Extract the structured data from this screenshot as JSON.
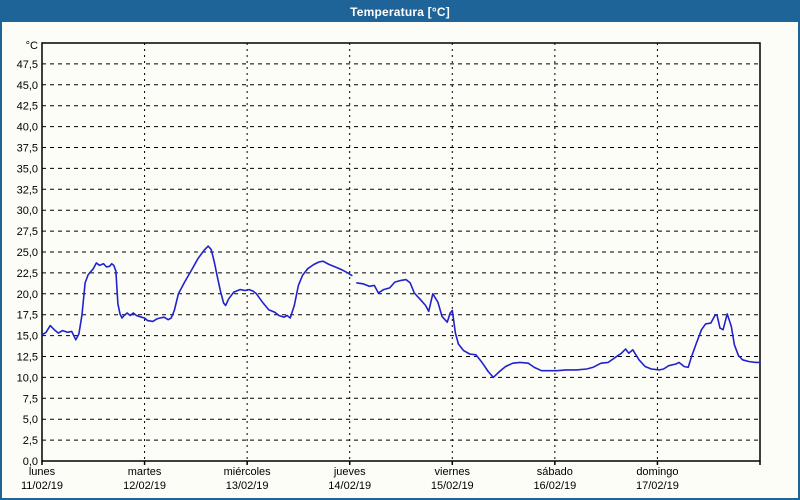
{
  "window": {
    "title": "Temperatura [°C]",
    "titlebar_color": "#1e6499",
    "border_color": "#1e6499",
    "background_color": "#fcfdf7"
  },
  "chart_data": {
    "type": "line",
    "title": "Temperatura [°C]",
    "grid": {
      "horizontal_dashed": true,
      "vertical_dashed": true
    },
    "legend_position": "none",
    "y_axis": {
      "unit": "°C",
      "min": 0,
      "max": 50,
      "tick_step": 2.5,
      "decimal_separator": ",",
      "ticks": [
        {
          "v": 47.5,
          "label": "47,5"
        },
        {
          "v": 45.0,
          "label": "45,0"
        },
        {
          "v": 42.5,
          "label": "42,5"
        },
        {
          "v": 40.0,
          "label": "40,0"
        },
        {
          "v": 37.5,
          "label": "37,5"
        },
        {
          "v": 35.0,
          "label": "35,0"
        },
        {
          "v": 32.5,
          "label": "32,5"
        },
        {
          "v": 30.0,
          "label": "30,0"
        },
        {
          "v": 27.5,
          "label": "27,5"
        },
        {
          "v": 25.0,
          "label": "25,0"
        },
        {
          "v": 22.5,
          "label": "22,5"
        },
        {
          "v": 20.0,
          "label": "20,0"
        },
        {
          "v": 17.5,
          "label": "17,5"
        },
        {
          "v": 15.0,
          "label": "15,0"
        },
        {
          "v": 12.5,
          "label": "12,5"
        },
        {
          "v": 10.0,
          "label": "10,0"
        },
        {
          "v": 7.5,
          "label": "7,5"
        },
        {
          "v": 5.0,
          "label": "5,0"
        },
        {
          "v": 2.5,
          "label": "2,5"
        },
        {
          "v": 0.0,
          "label": "0,0"
        }
      ]
    },
    "x_axis": {
      "days": [
        {
          "name": "lunes",
          "date": "11/02/19"
        },
        {
          "name": "martes",
          "date": "12/02/19"
        },
        {
          "name": "miércoles",
          "date": "13/02/19"
        },
        {
          "name": "jueves",
          "date": "14/02/19"
        },
        {
          "name": "viernes",
          "date": "15/02/19"
        },
        {
          "name": "sábado",
          "date": "16/02/19"
        },
        {
          "name": "domingo",
          "date": "17/02/19"
        }
      ]
    },
    "series": [
      {
        "name": "Temperatura",
        "color": "#2222cc",
        "x_unit": "days_since_monday_00h",
        "segments": [
          [
            [
              0.0,
              15.1
            ],
            [
              0.04,
              15.4
            ],
            [
              0.08,
              16.2
            ],
            [
              0.12,
              15.7
            ],
            [
              0.16,
              15.3
            ],
            [
              0.2,
              15.6
            ],
            [
              0.25,
              15.4
            ],
            [
              0.29,
              15.5
            ],
            [
              0.33,
              14.5
            ],
            [
              0.36,
              15.2
            ],
            [
              0.39,
              17.5
            ],
            [
              0.42,
              21.3
            ],
            [
              0.45,
              22.3
            ],
            [
              0.5,
              23.0
            ],
            [
              0.53,
              23.7
            ],
            [
              0.56,
              23.4
            ],
            [
              0.6,
              23.6
            ],
            [
              0.63,
              23.2
            ],
            [
              0.66,
              23.3
            ],
            [
              0.68,
              23.6
            ],
            [
              0.7,
              23.4
            ],
            [
              0.72,
              22.7
            ],
            [
              0.73,
              20.7
            ],
            [
              0.74,
              18.8
            ],
            [
              0.76,
              17.6
            ],
            [
              0.78,
              17.1
            ],
            [
              0.8,
              17.4
            ],
            [
              0.83,
              17.7
            ],
            [
              0.86,
              17.4
            ],
            [
              0.89,
              17.7
            ],
            [
              0.92,
              17.4
            ],
            [
              0.97,
              17.2
            ],
            [
              1.0,
              17.1
            ],
            [
              1.03,
              16.8
            ],
            [
              1.08,
              16.7
            ],
            [
              1.12,
              17.0
            ],
            [
              1.15,
              17.1
            ],
            [
              1.19,
              17.2
            ],
            [
              1.23,
              16.9
            ],
            [
              1.26,
              17.1
            ],
            [
              1.29,
              18.0
            ],
            [
              1.33,
              20.0
            ],
            [
              1.39,
              21.4
            ],
            [
              1.46,
              22.9
            ],
            [
              1.52,
              24.2
            ],
            [
              1.58,
              25.2
            ],
            [
              1.62,
              25.7
            ],
            [
              1.65,
              25.3
            ],
            [
              1.68,
              23.8
            ],
            [
              1.71,
              22.0
            ],
            [
              1.74,
              20.3
            ],
            [
              1.77,
              18.9
            ],
            [
              1.79,
              18.6
            ],
            [
              1.82,
              19.4
            ],
            [
              1.87,
              20.2
            ],
            [
              1.93,
              20.5
            ],
            [
              1.98,
              20.4
            ],
            [
              2.02,
              20.5
            ],
            [
              2.06,
              20.3
            ],
            [
              2.09,
              20.0
            ],
            [
              2.15,
              19.0
            ],
            [
              2.21,
              18.1
            ],
            [
              2.27,
              17.8
            ],
            [
              2.31,
              17.4
            ],
            [
              2.36,
              17.2
            ],
            [
              2.39,
              17.4
            ],
            [
              2.42,
              17.1
            ],
            [
              2.46,
              18.6
            ],
            [
              2.5,
              21.0
            ],
            [
              2.54,
              22.2
            ],
            [
              2.59,
              23.0
            ],
            [
              2.65,
              23.5
            ],
            [
              2.7,
              23.8
            ],
            [
              2.74,
              23.9
            ],
            [
              2.8,
              23.5
            ],
            [
              2.86,
              23.2
            ],
            [
              2.92,
              22.9
            ],
            [
              2.98,
              22.5
            ],
            [
              3.02,
              22.2
            ]
          ],
          [
            [
              3.07,
              21.3
            ],
            [
              3.13,
              21.2
            ],
            [
              3.19,
              20.9
            ],
            [
              3.24,
              21.0
            ],
            [
              3.28,
              20.1
            ],
            [
              3.33,
              20.5
            ],
            [
              3.39,
              20.7
            ],
            [
              3.44,
              21.4
            ],
            [
              3.5,
              21.6
            ],
            [
              3.55,
              21.7
            ],
            [
              3.59,
              21.3
            ],
            [
              3.63,
              20.1
            ],
            [
              3.69,
              19.3
            ],
            [
              3.74,
              18.6
            ],
            [
              3.77,
              17.9
            ],
            [
              3.81,
              20.0
            ],
            [
              3.86,
              19.0
            ],
            [
              3.9,
              17.3
            ],
            [
              3.95,
              16.6
            ],
            [
              3.98,
              17.7
            ],
            [
              4.0,
              18.0
            ],
            [
              4.03,
              15.3
            ],
            [
              4.06,
              14.0
            ],
            [
              4.11,
              13.2
            ],
            [
              4.17,
              12.8
            ],
            [
              4.23,
              12.7
            ],
            [
              4.29,
              11.8
            ],
            [
              4.35,
              10.7
            ],
            [
              4.4,
              10.0
            ],
            [
              4.46,
              10.7
            ],
            [
              4.52,
              11.3
            ],
            [
              4.59,
              11.7
            ],
            [
              4.66,
              11.8
            ],
            [
              4.74,
              11.7
            ],
            [
              4.8,
              11.2
            ],
            [
              4.87,
              10.8
            ],
            [
              4.95,
              10.8
            ],
            [
              5.02,
              10.8
            ],
            [
              5.11,
              10.9
            ],
            [
              5.21,
              10.9
            ],
            [
              5.31,
              11.0
            ],
            [
              5.37,
              11.2
            ],
            [
              5.45,
              11.7
            ],
            [
              5.52,
              11.8
            ],
            [
              5.59,
              12.4
            ],
            [
              5.65,
              12.9
            ],
            [
              5.69,
              13.4
            ],
            [
              5.72,
              12.9
            ],
            [
              5.76,
              13.3
            ],
            [
              5.82,
              12.1
            ],
            [
              5.88,
              11.3
            ],
            [
              5.94,
              11.0
            ],
            [
              6.02,
              10.9
            ],
            [
              6.06,
              11.0
            ],
            [
              6.11,
              11.4
            ],
            [
              6.18,
              11.6
            ],
            [
              6.21,
              11.8
            ],
            [
              6.26,
              11.3
            ],
            [
              6.3,
              11.2
            ],
            [
              6.33,
              12.4
            ],
            [
              6.38,
              14.1
            ],
            [
              6.43,
              15.7
            ],
            [
              6.47,
              16.4
            ],
            [
              6.52,
              16.5
            ],
            [
              6.56,
              17.4
            ],
            [
              6.58,
              17.5
            ],
            [
              6.61,
              15.9
            ],
            [
              6.64,
              15.7
            ],
            [
              6.68,
              17.6
            ],
            [
              6.72,
              16.1
            ],
            [
              6.75,
              13.9
            ],
            [
              6.79,
              12.6
            ],
            [
              6.83,
              12.1
            ],
            [
              6.89,
              11.9
            ],
            [
              6.96,
              11.8
            ],
            [
              7.0,
              11.8
            ]
          ]
        ]
      }
    ]
  }
}
